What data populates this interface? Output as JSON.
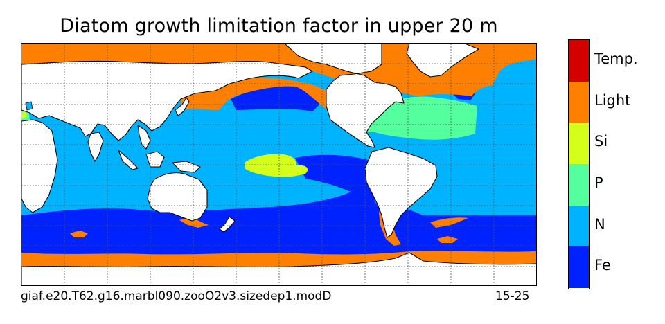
{
  "title": "Diatom growth limitation factor in upper 20 m",
  "caption_left": "giaf.e20.T62.g16.marbl090.zooO2v3.sizedep1.modD",
  "caption_right": "15-25",
  "colors": {
    "temp": "#d40000",
    "light": "#ff8000",
    "si": "#d4ff1a",
    "p": "#54ff9e",
    "n": "#00b3ff",
    "fe": "#0022ff",
    "land": "#ffffff",
    "coast": "#000000",
    "grid": "#555555"
  },
  "legend": [
    {
      "label": "Temp.",
      "color": "#d40000"
    },
    {
      "label": "Light",
      "color": "#ff8000"
    },
    {
      "label": "Si",
      "color": "#d4ff1a"
    },
    {
      "label": "P",
      "color": "#54ff9e"
    },
    {
      "label": "N",
      "color": "#00b3ff"
    },
    {
      "label": "Fe",
      "color": "#0022ff"
    }
  ]
}
